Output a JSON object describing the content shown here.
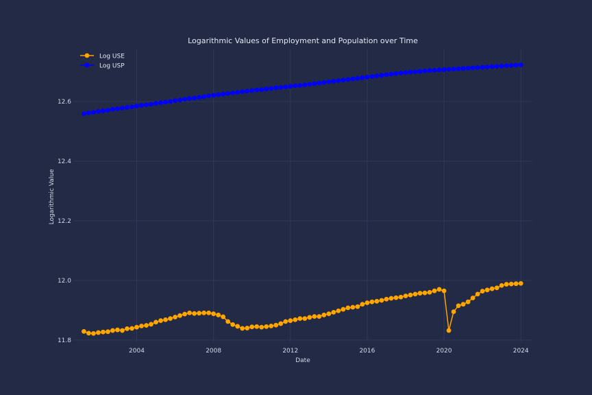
{
  "chart_data": {
    "type": "line",
    "title": "Logarithmic Values of Employment and Population over Time",
    "xlabel": "Date",
    "ylabel": "Logarithmic Value",
    "xlim": [
      2000.7,
      2024.6
    ],
    "ylim": [
      11.795,
      12.775
    ],
    "x_ticks": [
      2004,
      2008,
      2012,
      2016,
      2020,
      2024
    ],
    "y_ticks": [
      11.8,
      12.0,
      12.2,
      12.4,
      12.6
    ],
    "y_tick_labels": [
      "11.8",
      "12.0",
      "12.2",
      "12.4",
      "12.6"
    ],
    "grid": true,
    "legend_position": "top-left",
    "x_start": 2001.25,
    "x_step": 0.25,
    "series": [
      {
        "name": "Log USE",
        "color": "#ffa500",
        "values": [
          11.829,
          11.823,
          11.822,
          11.825,
          11.827,
          11.828,
          11.832,
          11.834,
          11.832,
          11.838,
          11.839,
          11.843,
          11.847,
          11.849,
          11.853,
          11.86,
          11.865,
          11.868,
          11.872,
          11.877,
          11.882,
          11.887,
          11.891,
          11.889,
          11.89,
          11.891,
          11.891,
          11.888,
          11.884,
          11.878,
          11.862,
          11.852,
          11.846,
          11.839,
          11.84,
          11.844,
          11.845,
          11.843,
          11.845,
          11.847,
          11.85,
          11.855,
          11.862,
          11.865,
          11.868,
          11.872,
          11.872,
          11.876,
          11.879,
          11.879,
          11.884,
          11.888,
          11.893,
          11.898,
          11.903,
          11.908,
          11.91,
          11.912,
          11.92,
          11.925,
          11.928,
          11.93,
          11.933,
          11.937,
          11.94,
          11.942,
          11.944,
          11.948,
          11.951,
          11.954,
          11.957,
          11.958,
          11.96,
          11.965,
          11.97,
          11.965,
          11.832,
          11.895,
          11.915,
          11.92,
          11.928,
          11.941,
          11.954,
          11.964,
          11.968,
          11.972,
          11.975,
          11.983,
          11.987,
          11.988,
          11.989,
          11.99
        ]
      },
      {
        "name": "Log USP",
        "color": "#0000ff",
        "values": [
          12.559,
          12.562,
          12.564,
          12.567,
          12.569,
          12.571,
          12.574,
          12.576,
          12.578,
          12.58,
          12.582,
          12.585,
          12.587,
          12.589,
          12.591,
          12.594,
          12.596,
          12.598,
          12.6,
          12.603,
          12.605,
          12.608,
          12.61,
          12.612,
          12.614,
          12.616,
          12.619,
          12.621,
          12.623,
          12.625,
          12.627,
          12.629,
          12.631,
          12.633,
          12.635,
          12.637,
          12.639,
          12.64,
          12.642,
          12.644,
          12.646,
          12.647,
          12.649,
          12.651,
          12.653,
          12.654,
          12.656,
          12.658,
          12.66,
          12.662,
          12.664,
          12.666,
          12.668,
          12.67,
          12.672,
          12.674,
          12.676,
          12.678,
          12.68,
          12.682,
          12.684,
          12.686,
          12.688,
          12.69,
          12.692,
          12.694,
          12.696,
          12.697,
          12.699,
          12.7,
          12.701,
          12.703,
          12.704,
          12.705,
          12.706,
          12.707,
          12.708,
          12.709,
          12.71,
          12.711,
          12.712,
          12.713,
          12.714,
          12.715,
          12.716,
          12.717,
          12.718,
          12.719,
          12.72,
          12.721,
          12.722,
          12.723
        ]
      }
    ]
  }
}
